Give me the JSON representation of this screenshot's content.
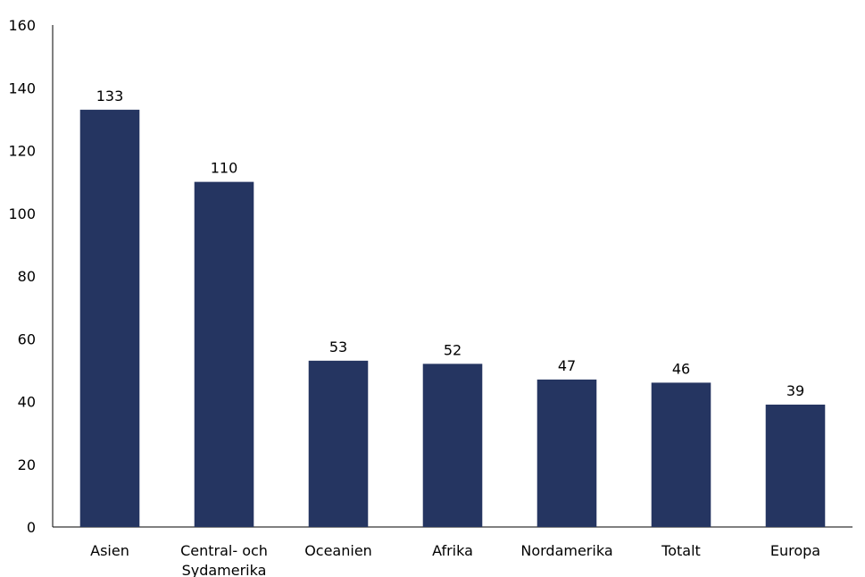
{
  "chart_data": {
    "type": "bar",
    "title": "",
    "xlabel": "",
    "ylabel": "",
    "ylim": [
      0,
      160
    ],
    "yticks": [
      0,
      20,
      40,
      60,
      80,
      100,
      120,
      140,
      160
    ],
    "grid": false,
    "legend": "none",
    "bar_color": "#253561",
    "categories": [
      [
        "Asien"
      ],
      [
        "Central- och",
        "Sydamerika"
      ],
      [
        "Oceanien"
      ],
      [
        "Afrika"
      ],
      [
        "Nordamerika"
      ],
      [
        "Totalt"
      ],
      [
        "Europa"
      ]
    ],
    "values": [
      133,
      110,
      53,
      52,
      47,
      46,
      39
    ]
  }
}
